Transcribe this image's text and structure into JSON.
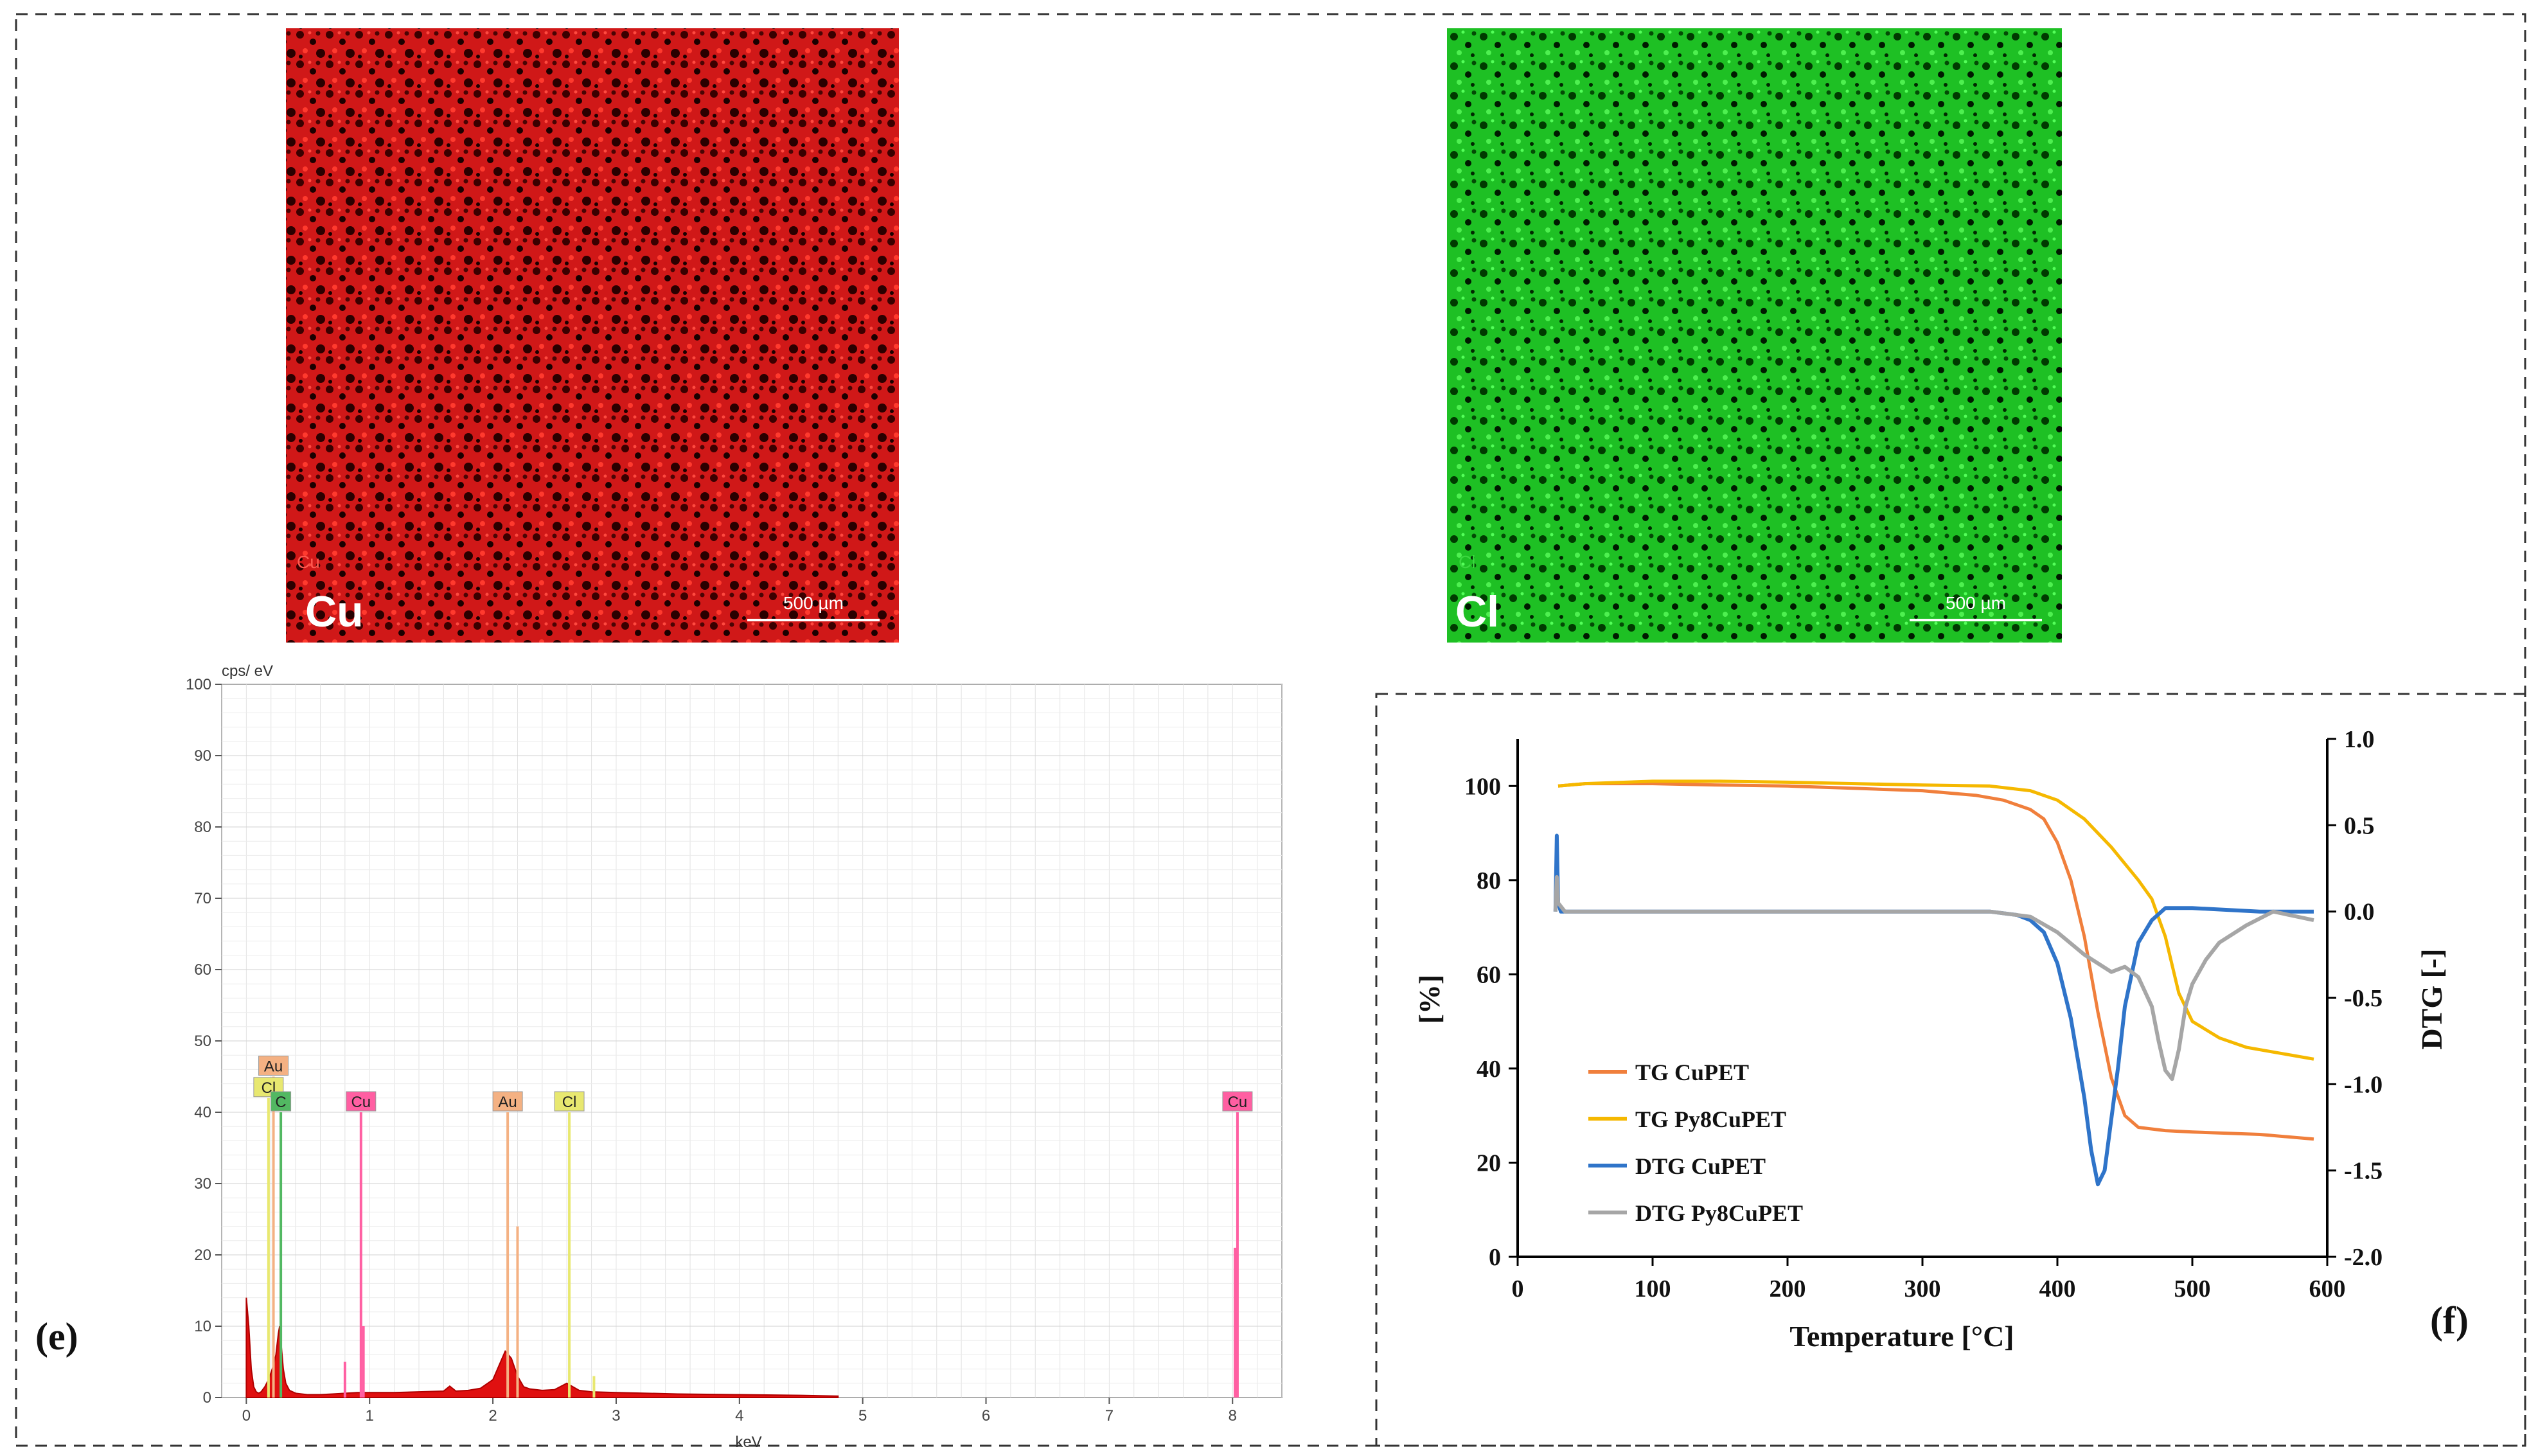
{
  "maps": [
    {
      "element": "Cu",
      "corner_tag": "Cu",
      "scale_bar": "500 µm",
      "color": "#e41a1c"
    },
    {
      "element": "Cl",
      "corner_tag": "Cl",
      "scale_bar": "500 µm",
      "color": "#22c22a"
    }
  ],
  "panel_labels": {
    "e": "(e)",
    "f": "(f)"
  },
  "chart_data": [
    {
      "type": "bar",
      "panel": "(e)",
      "ylabel": "cps/ eV",
      "xlabel": "keV",
      "xlim": [
        -0.2,
        8.4
      ],
      "ylim": [
        0,
        100
      ],
      "x_ticks": [
        0,
        1,
        2,
        3,
        4,
        5,
        6,
        7,
        8
      ],
      "y_ticks": [
        0,
        10,
        20,
        30,
        40,
        50,
        60,
        70,
        80,
        90,
        100
      ],
      "grid": true,
      "spectrum": {
        "x": [
          0.0,
          0.02,
          0.04,
          0.06,
          0.08,
          0.1,
          0.12,
          0.15,
          0.18,
          0.2,
          0.22,
          0.24,
          0.26,
          0.27,
          0.28,
          0.3,
          0.32,
          0.35,
          0.4,
          0.5,
          0.6,
          0.7,
          0.8,
          0.9,
          1.0,
          1.2,
          1.4,
          1.6,
          1.65,
          1.7,
          1.8,
          1.9,
          2.0,
          2.05,
          2.1,
          2.15,
          2.2,
          2.25,
          2.3,
          2.4,
          2.5,
          2.6,
          2.62,
          2.7,
          2.8,
          3.0,
          3.5,
          4.0,
          4.5,
          4.8
        ],
        "y": [
          14,
          10,
          4,
          1.5,
          0.8,
          0.6,
          0.8,
          1.5,
          2.5,
          3.5,
          4.5,
          6,
          9,
          10,
          8,
          4,
          2,
          1,
          0.6,
          0.4,
          0.4,
          0.5,
          0.6,
          0.7,
          0.7,
          0.7,
          0.8,
          0.9,
          1.6,
          0.9,
          1.0,
          1.3,
          2.5,
          4.5,
          6.5,
          5.5,
          3,
          1.5,
          1.2,
          1.0,
          1.1,
          2.0,
          1.8,
          1.0,
          0.8,
          0.7,
          0.5,
          0.4,
          0.3,
          0.2
        ]
      },
      "peak_lines": [
        {
          "label": "Cl",
          "x": 0.18,
          "height": 42,
          "color": "#e8e870"
        },
        {
          "label": "Au",
          "x": 0.22,
          "height": 45,
          "color": "#f4b183"
        },
        {
          "label": "C",
          "x": 0.28,
          "height": 40,
          "color": "#52b862"
        },
        {
          "label": "Cu",
          "x": 0.93,
          "height": 40,
          "color": "#ff5fa2"
        },
        {
          "label": "Au",
          "x": 2.12,
          "height": 40,
          "color": "#f4b183"
        },
        {
          "label": "Cl",
          "x": 2.62,
          "height": 40,
          "color": "#e8e870"
        },
        {
          "label": "Cu",
          "x": 8.04,
          "height": 40,
          "color": "#ff5fa2"
        }
      ],
      "minor_lines": [
        {
          "x": 0.8,
          "height": 5,
          "color": "#ff5fa2"
        },
        {
          "x": 0.95,
          "height": 10,
          "color": "#ff5fa2"
        },
        {
          "x": 2.2,
          "height": 24,
          "color": "#f4b183"
        },
        {
          "x": 2.82,
          "height": 3,
          "color": "#e8e870"
        },
        {
          "x": 8.02,
          "height": 21,
          "color": "#ff5fa2"
        }
      ]
    },
    {
      "type": "line",
      "panel": "(f)",
      "xlabel": "Temperature [°C]",
      "ylabel": "[%]",
      "y2label": "DTG [-]",
      "xlim": [
        0,
        600
      ],
      "ylim": [
        0,
        110
      ],
      "y2lim": [
        -2.0,
        1.0
      ],
      "x_ticks": [
        0,
        100,
        200,
        300,
        400,
        500,
        600
      ],
      "y_ticks": [
        0,
        20,
        40,
        60,
        80,
        100
      ],
      "y2_ticks": [
        "1.0",
        "0.5",
        "0.0",
        "-0.5",
        "-1.0",
        "-1.5",
        "-2.0"
      ],
      "legend_position": "bottom-left",
      "series": [
        {
          "name": "TG CuPET",
          "axis": "left",
          "color": "#f07f3c",
          "x": [
            30,
            50,
            100,
            150,
            200,
            250,
            300,
            340,
            360,
            380,
            390,
            400,
            410,
            420,
            430,
            440,
            450,
            460,
            480,
            500,
            550,
            590
          ],
          "y": [
            100,
            100.5,
            100.5,
            100.2,
            100,
            99.5,
            99,
            98,
            97,
            95,
            93,
            88,
            80,
            68,
            52,
            38,
            30,
            27.5,
            26.8,
            26.5,
            26,
            25
          ]
        },
        {
          "name": "TG Py8CuPET",
          "axis": "left",
          "color": "#f5b800",
          "x": [
            30,
            50,
            100,
            150,
            200,
            250,
            300,
            350,
            380,
            400,
            420,
            440,
            460,
            470,
            480,
            490,
            500,
            520,
            540,
            560,
            590
          ],
          "y": [
            100,
            100.5,
            101,
            101,
            100.8,
            100.5,
            100.2,
            100,
            99,
            97,
            93,
            87,
            80,
            76,
            68,
            56,
            50,
            46.5,
            44.5,
            43.5,
            42
          ]
        },
        {
          "name": "DTG CuPET",
          "axis": "right",
          "color": "#2f74c9",
          "x": [
            28,
            29,
            30,
            32,
            35,
            50,
            100,
            150,
            200,
            250,
            300,
            350,
            370,
            380,
            390,
            400,
            410,
            420,
            425,
            430,
            435,
            440,
            445,
            450,
            460,
            470,
            480,
            500,
            550,
            590
          ],
          "y": [
            0.0,
            0.44,
            0.05,
            0.0,
            0.0,
            0.0,
            0.0,
            0.0,
            0.0,
            0.0,
            0.0,
            0.0,
            -0.02,
            -0.05,
            -0.12,
            -0.3,
            -0.62,
            -1.08,
            -1.38,
            -1.58,
            -1.5,
            -1.2,
            -0.9,
            -0.55,
            -0.18,
            -0.05,
            0.02,
            0.02,
            0.0,
            0.0
          ]
        },
        {
          "name": "DTG Py8CuPET",
          "axis": "right",
          "color": "#a6a6a6",
          "x": [
            28,
            29,
            30,
            35,
            50,
            100,
            150,
            200,
            250,
            300,
            350,
            380,
            400,
            420,
            440,
            450,
            460,
            470,
            475,
            480,
            485,
            490,
            495,
            500,
            510,
            520,
            540,
            560,
            590
          ],
          "y": [
            0.0,
            0.2,
            0.05,
            0.0,
            0.0,
            0.0,
            0.0,
            0.0,
            0.0,
            0.0,
            0.0,
            -0.03,
            -0.12,
            -0.25,
            -0.35,
            -0.32,
            -0.38,
            -0.55,
            -0.75,
            -0.92,
            -0.97,
            -0.8,
            -0.55,
            -0.42,
            -0.28,
            -0.18,
            -0.08,
            0.0,
            -0.05
          ]
        }
      ]
    }
  ]
}
